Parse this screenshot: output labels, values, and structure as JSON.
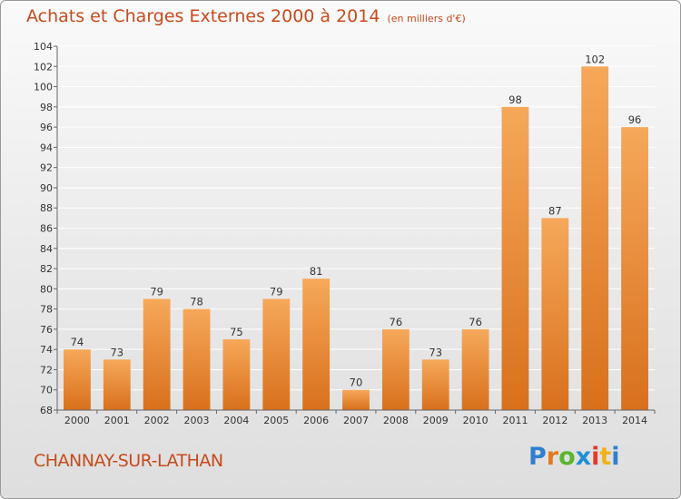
{
  "title": "Achats et Charges Externes 2000 à 2014",
  "subtitle": "(en milliers d'€)",
  "commune": "CHANNAY-SUR-LATHAN",
  "brand": "Proxiti",
  "colors": {
    "title": "#c74a1b",
    "bar_light": "#f6a85a",
    "bar_dark": "#d8701c",
    "grid": "#ffffff"
  },
  "chart_data": {
    "type": "bar",
    "categories": [
      "2000",
      "2001",
      "2002",
      "2003",
      "2004",
      "2005",
      "2006",
      "2007",
      "2008",
      "2009",
      "2010",
      "2011",
      "2012",
      "2013",
      "2014"
    ],
    "values": [
      74,
      73,
      79,
      78,
      75,
      79,
      81,
      70,
      76,
      73,
      76,
      98,
      87,
      102,
      96
    ],
    "ylim": [
      68,
      104
    ],
    "yticks": [
      68,
      70,
      72,
      74,
      76,
      78,
      80,
      82,
      84,
      86,
      88,
      90,
      92,
      94,
      96,
      98,
      100,
      102,
      104
    ],
    "grid": true
  }
}
